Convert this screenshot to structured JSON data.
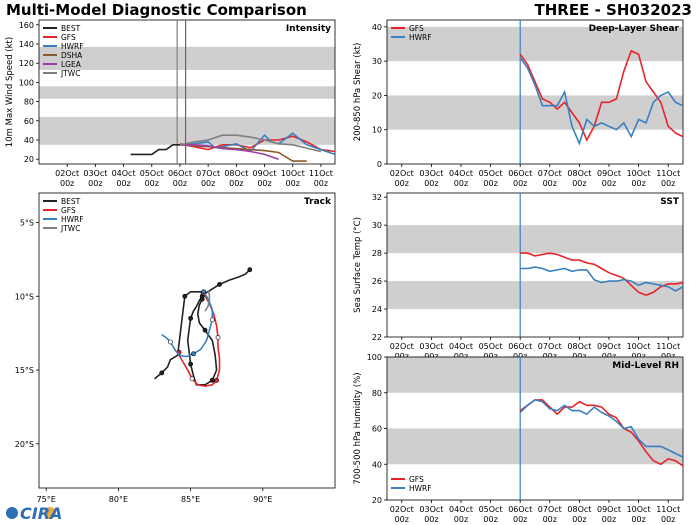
{
  "page": {
    "title_left": "Multi-Model Diagnostic Comparison",
    "title_right": "THREE - SH032023",
    "logo_text": "CIRA",
    "colors": {
      "BEST": "#222222",
      "GFS": "#e8232a",
      "HWRF": "#3a7fc1",
      "DSHA": "#8b5a2b",
      "LGEA": "#9b3fa8",
      "JTWC": "#808080",
      "band": "#cfcfcf",
      "init_line": "#3a7fc1"
    }
  },
  "chart_data": [
    {
      "id": "intensity",
      "type": "line",
      "title": "Intensity",
      "ylabel": "10m Max Wind Speed (kt)",
      "ylim": [
        15,
        165
      ],
      "yticks": [
        20,
        40,
        60,
        80,
        100,
        120,
        140,
        160
      ],
      "bands": [
        [
          35,
          64
        ],
        [
          83,
          96
        ],
        [
          113,
          137
        ]
      ],
      "xlim": [
        -5,
        5.5
      ],
      "xtick_pos": [
        -4,
        -3,
        -2,
        -1,
        0,
        1,
        2,
        3,
        4,
        5
      ],
      "xtick_labels": [
        [
          "02Oct",
          "00z"
        ],
        [
          "03Oct",
          "00z"
        ],
        [
          "04Oct",
          "00z"
        ],
        [
          "05Oct",
          "00z"
        ],
        [
          "06Oct",
          "00z"
        ],
        [
          "07Oct",
          "00z"
        ],
        [
          "08Oct",
          "00z"
        ],
        [
          "09Oct",
          "00z"
        ],
        [
          "10Oct",
          "00z"
        ],
        [
          "11Oct",
          "00z"
        ]
      ],
      "vlines": [
        {
          "x": -0.1,
          "color": "#808080"
        },
        {
          "x": 0.2,
          "color": "#9b3fa8"
        }
      ],
      "legend": [
        "BEST",
        "GFS",
        "HWRF",
        "DSHA",
        "LGEA",
        "JTWC"
      ],
      "legend_pos": "top-left",
      "series": [
        {
          "name": "BEST",
          "x": [
            -1.75,
            -1.5,
            -1.25,
            -1.0,
            -0.75,
            -0.5,
            -0.25,
            0.0,
            0.25
          ],
          "y": [
            25,
            25,
            25,
            25,
            30,
            30,
            35,
            35,
            35
          ]
        },
        {
          "name": "GFS",
          "x": [
            0,
            0.5,
            1,
            1.5,
            2,
            2.5,
            3,
            3.5,
            4,
            4.5,
            5,
            5.5
          ],
          "y": [
            36,
            33,
            30,
            35,
            35,
            32,
            40,
            40,
            44,
            38,
            30,
            28
          ]
        },
        {
          "name": "HWRF",
          "x": [
            0,
            0.5,
            1,
            1.25,
            1.5,
            2,
            2.5,
            3,
            3.25,
            3.5,
            4,
            4.5,
            5,
            5.5
          ],
          "y": [
            35,
            36,
            38,
            32,
            33,
            36,
            28,
            45,
            38,
            36,
            47,
            35,
            30,
            25
          ]
        },
        {
          "name": "DSHA",
          "x": [
            0,
            0.5,
            1,
            1.5,
            2,
            2.5,
            3,
            3.5,
            4,
            4.5
          ],
          "y": [
            35,
            34,
            33,
            32,
            31,
            30,
            29,
            27,
            18,
            18
          ]
        },
        {
          "name": "LGEA",
          "x": [
            0,
            0.5,
            1,
            1.5,
            2,
            2.5,
            3,
            3.5
          ],
          "y": [
            35,
            35,
            34,
            31,
            30,
            28,
            25,
            20
          ]
        },
        {
          "name": "JTWC",
          "x": [
            0,
            0.5,
            1,
            1.5,
            2,
            2.5,
            3,
            3.5,
            4,
            5
          ],
          "y": [
            35,
            38,
            40,
            45,
            45,
            43,
            40,
            36,
            35,
            28
          ]
        }
      ]
    },
    {
      "id": "shear",
      "type": "line",
      "title": "Deep-Layer Shear",
      "ylabel": "200-850 hPa Shear (kt)",
      "ylim": [
        0,
        42
      ],
      "yticks": [
        0,
        10,
        20,
        30,
        40
      ],
      "bands": [
        [
          10,
          20
        ],
        [
          30,
          40
        ]
      ],
      "xlim": [
        -4.5,
        5.5
      ],
      "xtick_pos": [
        -4,
        -3,
        -2,
        -1,
        0,
        1,
        2,
        3,
        4,
        5
      ],
      "xtick_labels": [
        [
          "02Oct",
          "00z"
        ],
        [
          "03Oct",
          "00z"
        ],
        [
          "04Oct",
          "00z"
        ],
        [
          "05Oct",
          "00z"
        ],
        [
          "06Oct",
          "00z"
        ],
        [
          "07Oct",
          "00z"
        ],
        [
          "08Oct",
          "00z"
        ],
        [
          "09Oct",
          "00z"
        ],
        [
          "10Oct",
          "00z"
        ],
        [
          "11Oct",
          "00z"
        ]
      ],
      "vlines": [
        {
          "x": 0,
          "color": "#3a7fc1"
        }
      ],
      "legend": [
        "GFS",
        "HWRF"
      ],
      "legend_pos": "top-left",
      "series": [
        {
          "name": "GFS",
          "x": [
            0,
            0.25,
            0.5,
            0.75,
            1,
            1.25,
            1.5,
            1.75,
            2,
            2.25,
            2.5,
            2.75,
            3,
            3.25,
            3.5,
            3.75,
            4,
            4.25,
            4.5,
            4.75,
            5,
            5.25,
            5.5
          ],
          "y": [
            32,
            29,
            24,
            19,
            18,
            16,
            18,
            15,
            12,
            7,
            11,
            18,
            18,
            19,
            27,
            33,
            32,
            24,
            21,
            18,
            11,
            9,
            8
          ]
        },
        {
          "name": "HWRF",
          "x": [
            0,
            0.25,
            0.5,
            0.75,
            1,
            1.25,
            1.5,
            1.75,
            2,
            2.25,
            2.5,
            2.75,
            3,
            3.25,
            3.5,
            3.75,
            4,
            4.25,
            4.5,
            4.75,
            5,
            5.25,
            5.5
          ],
          "y": [
            31,
            28,
            23,
            17,
            17,
            17,
            21,
            11,
            6,
            13,
            11,
            12,
            11,
            10,
            12,
            8,
            13,
            12,
            18,
            20,
            21,
            18,
            17
          ]
        }
      ]
    },
    {
      "id": "track",
      "type": "line",
      "title": "Track",
      "xlim": [
        74.5,
        95
      ],
      "ylim": [
        -23,
        -3
      ],
      "xticks": [
        75,
        80,
        85,
        90
      ],
      "xtick_labels": [
        "75°E",
        "80°E",
        "85°E",
        "90°E"
      ],
      "yticks": [
        -5,
        -10,
        -15,
        -20
      ],
      "ytick_labels": [
        "5°S",
        "10°S",
        "15°S",
        "20°S"
      ],
      "legend": [
        "BEST",
        "GFS",
        "HWRF",
        "JTWC"
      ],
      "legend_pos": "top-left",
      "series": [
        {
          "name": "BEST",
          "lon": [
            89.1,
            88.8,
            88.3,
            87.7,
            87.0,
            86.5,
            86.2,
            86.0,
            85.8,
            85.6,
            85.4,
            85.2,
            85.0,
            84.9,
            84.8,
            84.9,
            85.0,
            85.2,
            85.4,
            86.0,
            86.5,
            86.8,
            86.7,
            86.5,
            86.0,
            85.6,
            85.5,
            85.6,
            85.8,
            85.9,
            85.7,
            85.0,
            84.6,
            84.1,
            83.6,
            83.4,
            83.0,
            82.5
          ],
          "lat": [
            -8.2,
            -8.5,
            -8.7,
            -8.9,
            -9.2,
            -9.5,
            -9.7,
            -9.8,
            -10.0,
            -10.3,
            -10.7,
            -11.0,
            -11.5,
            -12.2,
            -13.0,
            -13.8,
            -14.6,
            -15.4,
            -16.0,
            -16.0,
            -15.7,
            -15.0,
            -14.0,
            -13.0,
            -12.3,
            -11.8,
            -11.2,
            -10.6,
            -10.2,
            -9.9,
            -9.7,
            -9.7,
            -10.0,
            -14.0,
            -14.3,
            -14.8,
            -15.2,
            -15.6
          ]
        },
        {
          "name": "GFS",
          "lon": [
            85.9,
            86.3,
            86.6,
            86.8,
            86.9,
            86.9,
            87.0,
            87.0,
            86.8,
            86.5,
            86.0,
            85.5,
            85.1,
            84.8,
            84.5,
            84.2,
            84.2
          ],
          "lat": [
            -9.8,
            -10.5,
            -11.2,
            -12.0,
            -12.8,
            -13.5,
            -14.2,
            -15.0,
            -15.7,
            -16.0,
            -16.1,
            -16.0,
            -15.6,
            -15.0,
            -14.5,
            -14.0,
            -13.8
          ]
        },
        {
          "name": "HWRF",
          "lon": [
            85.9,
            86.1,
            86.3,
            86.5,
            86.5,
            86.3,
            86.1,
            85.7,
            85.2,
            84.7,
            84.2,
            83.9,
            83.6,
            83.3,
            83.0
          ],
          "lat": [
            -9.7,
            -10.0,
            -10.4,
            -10.9,
            -11.6,
            -12.3,
            -13.0,
            -13.6,
            -13.9,
            -14.1,
            -14.0,
            -13.6,
            -13.1,
            -12.8,
            -12.6
          ]
        },
        {
          "name": "JTWC",
          "lon": [
            86.2,
            86.3,
            86.3,
            86.2,
            86.0
          ],
          "lat": [
            -9.6,
            -9.9,
            -10.3,
            -10.7,
            -11.0
          ]
        }
      ]
    },
    {
      "id": "sst",
      "type": "line",
      "title": "SST",
      "ylabel": "Sea Surface Temp (°C)",
      "ylim": [
        22,
        32.3
      ],
      "yticks": [
        22,
        24,
        26,
        28,
        30,
        32
      ],
      "bands": [
        [
          24,
          26
        ],
        [
          28,
          30
        ]
      ],
      "xlim": [
        -4.5,
        5.5
      ],
      "xtick_pos": [
        -4,
        -3,
        -2,
        -1,
        0,
        1,
        2,
        3,
        4,
        5
      ],
      "xtick_labels": [
        [
          "02Oct",
          "00z"
        ],
        [
          "03Oct",
          "00z"
        ],
        [
          "04Oct",
          "00z"
        ],
        [
          "05Oct",
          "00z"
        ],
        [
          "06Oct",
          "00z"
        ],
        [
          "07Oct",
          "00z"
        ],
        [
          "08Oct",
          "00z"
        ],
        [
          "09Oct",
          "00z"
        ],
        [
          "10Oct",
          "00z"
        ],
        [
          "11Oct",
          "00z"
        ]
      ],
      "vlines": [
        {
          "x": 0,
          "color": "#3a7fc1"
        }
      ],
      "legend": [],
      "series": [
        {
          "name": "GFS",
          "x": [
            0,
            0.25,
            0.5,
            0.75,
            1,
            1.25,
            1.5,
            1.75,
            2,
            2.25,
            2.5,
            2.75,
            3,
            3.25,
            3.5,
            3.75,
            4,
            4.25,
            4.5,
            4.75,
            5,
            5.25,
            5.5
          ],
          "y": [
            28.0,
            28.0,
            27.8,
            27.9,
            28.0,
            27.9,
            27.7,
            27.5,
            27.5,
            27.3,
            27.2,
            26.9,
            26.6,
            26.4,
            26.2,
            25.7,
            25.2,
            25.0,
            25.2,
            25.6,
            25.8,
            25.8,
            25.9
          ]
        },
        {
          "name": "HWRF",
          "x": [
            0,
            0.25,
            0.5,
            0.75,
            1,
            1.25,
            1.5,
            1.75,
            2,
            2.25,
            2.5,
            2.75,
            3,
            3.25,
            3.5,
            3.75,
            4,
            4.25,
            4.5,
            4.75,
            5,
            5.25,
            5.5
          ],
          "y": [
            26.9,
            26.9,
            27.0,
            26.9,
            26.7,
            26.8,
            26.9,
            26.7,
            26.8,
            26.8,
            26.1,
            25.9,
            26.0,
            26.0,
            26.1,
            26.0,
            25.7,
            25.9,
            25.8,
            25.7,
            25.6,
            25.3,
            25.6
          ]
        }
      ]
    },
    {
      "id": "rh",
      "type": "line",
      "title": "Mid-Level RH",
      "ylabel": "700-500 hPa Humidity (%)",
      "ylim": [
        20,
        100
      ],
      "yticks": [
        20,
        40,
        60,
        80,
        100
      ],
      "bands": [
        [
          40,
          60
        ],
        [
          80,
          100
        ]
      ],
      "xlim": [
        -4.5,
        5.5
      ],
      "xtick_pos": [
        -4,
        -3,
        -2,
        -1,
        0,
        1,
        2,
        3,
        4,
        5
      ],
      "xtick_labels": [
        [
          "02Oct",
          "00z"
        ],
        [
          "03Oct",
          "00z"
        ],
        [
          "04Oct",
          "00z"
        ],
        [
          "05Oct",
          "00z"
        ],
        [
          "06Oct",
          "00z"
        ],
        [
          "07Oct",
          "00z"
        ],
        [
          "08Oct",
          "00z"
        ],
        [
          "09Oct",
          "00z"
        ],
        [
          "10Oct",
          "00z"
        ],
        [
          "11Oct",
          "00z"
        ]
      ],
      "vlines": [
        {
          "x": 0,
          "color": "#3a7fc1"
        }
      ],
      "legend": [
        "GFS",
        "HWRF"
      ],
      "legend_pos": "bottom-left",
      "series": [
        {
          "name": "GFS",
          "x": [
            0,
            0.25,
            0.5,
            0.75,
            1,
            1.25,
            1.5,
            1.75,
            2,
            2.25,
            2.5,
            2.75,
            3,
            3.25,
            3.5,
            3.75,
            4,
            4.25,
            4.5,
            4.75,
            5,
            5.25,
            5.5
          ],
          "y": [
            70,
            73,
            76,
            76,
            72,
            68,
            72,
            72,
            75,
            73,
            73,
            72,
            68,
            66,
            60,
            58,
            53,
            47,
            42,
            40,
            43,
            42,
            39
          ]
        },
        {
          "name": "HWRF",
          "x": [
            0,
            0.25,
            0.5,
            0.75,
            1,
            1.25,
            1.5,
            1.75,
            2,
            2.25,
            2.5,
            2.75,
            3,
            3.25,
            3.5,
            3.75,
            4,
            4.25,
            4.5,
            4.75,
            5,
            5.25,
            5.5
          ],
          "y": [
            69,
            73,
            76,
            75,
            71,
            70,
            73,
            70,
            70,
            68,
            72,
            69,
            67,
            64,
            60,
            61,
            54,
            50,
            50,
            50,
            48,
            46,
            44
          ]
        }
      ]
    }
  ]
}
